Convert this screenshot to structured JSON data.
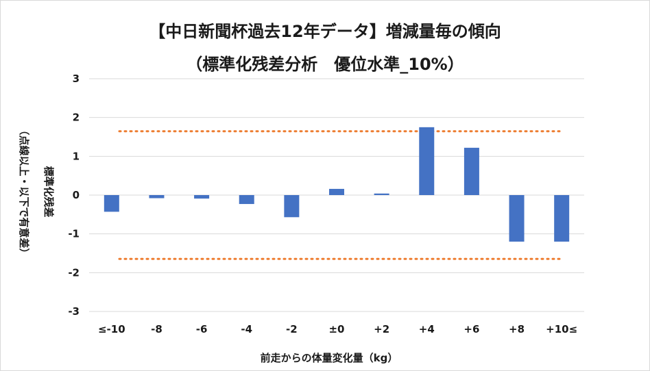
{
  "chart_data": {
    "type": "bar",
    "title": "【中日新聞杯過去12年データ】増減量毎の傾向",
    "subtitle": "（標準化残差分析　優位水準_10%）",
    "xlabel": "前走からの体量変化量（kg）",
    "ylabel_main": "標準化残差",
    "ylabel_sub": "（点線以上・以下で有意差）",
    "categories": [
      "≤-10",
      "-8",
      "-6",
      "-4",
      "-2",
      "±0",
      "+2",
      "+4",
      "+6",
      "+8",
      "+10≤"
    ],
    "values": [
      -0.43,
      -0.08,
      -0.09,
      -0.23,
      -0.57,
      0.16,
      0.04,
      1.75,
      1.22,
      -1.2,
      -1.2
    ],
    "ylim": [
      -3,
      3
    ],
    "yticks": [
      3,
      2,
      1,
      0,
      -1,
      -2,
      -3
    ],
    "threshold_lines": [
      1.645,
      -1.645
    ],
    "grid": true,
    "colors": {
      "bar": "#4472c4",
      "threshold": "#ed7d31",
      "grid": "#d9d9d9"
    }
  }
}
